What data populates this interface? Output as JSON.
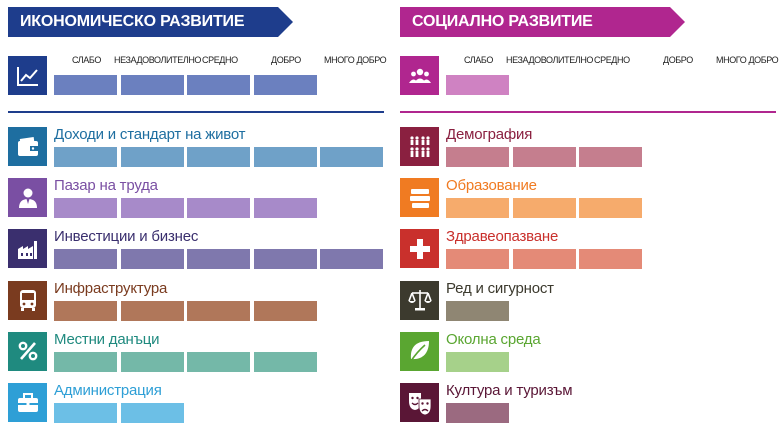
{
  "colors": {
    "economic_banner": "#1e3d8c",
    "social_banner": "#b0268f"
  },
  "economic": {
    "title": "ИКОНОМИЧЕСКО РАЗВИТИЕ",
    "overall": {
      "icon": "line-chart-icon",
      "color": "#1e3d8c",
      "bar_color": "#6b80bf",
      "level": 4
    },
    "scale": [
      "СЛАБО",
      "НЕЗАДОВОЛИТЕЛНО",
      "СРЕДНО",
      "ДОБРО",
      "МНОГО ДОБРО"
    ],
    "rows": [
      {
        "label": "Доходи и стандарт на живот",
        "icon": "wallet-icon",
        "color": "#1e6ea0",
        "bar_color": "#6fa1c8",
        "level": 5
      },
      {
        "label": "Пазар на труда",
        "icon": "worker-icon",
        "color": "#7a4fa3",
        "bar_color": "#a78ac9",
        "level": 4
      },
      {
        "label": "Инвестиции и бизнес",
        "icon": "factory-icon",
        "color": "#3a2f6e",
        "bar_color": "#7f78ad",
        "level": 5
      },
      {
        "label": "Инфраструктура",
        "icon": "bus-icon",
        "color": "#7a3b1f",
        "bar_color": "#b0775a",
        "level": 4
      },
      {
        "label": "Местни данъци",
        "icon": "percent-icon",
        "color": "#1f8a7f",
        "bar_color": "#74b8a8",
        "level": 4
      },
      {
        "label": "Администрация",
        "icon": "briefcase-icon",
        "color": "#2e9fd6",
        "bar_color": "#6cbfe6",
        "level": 2
      }
    ]
  },
  "social": {
    "title": "СОЦИАЛНО РАЗВИТИЕ",
    "overall": {
      "icon": "people-icon",
      "color": "#b0268f",
      "bar_color": "#cf82c2",
      "level": 1
    },
    "scale": [
      "СЛАБО",
      "НЕЗАДОВОЛИТЕЛНО",
      "СРЕДНО",
      "ДОБРО",
      "МНОГО ДОБРО"
    ],
    "rows": [
      {
        "label": "Демография",
        "icon": "population-icon",
        "color": "#8a2040",
        "bar_color": "#c57e8e",
        "level": 3
      },
      {
        "label": "Образование",
        "icon": "books-icon",
        "color": "#f07b22",
        "bar_color": "#f6ab6c",
        "level": 3
      },
      {
        "label": "Здравеопазване",
        "icon": "health-cross-icon",
        "color": "#c9302c",
        "bar_color": "#e48a77",
        "level": 3
      },
      {
        "label": "Ред и сигурност",
        "icon": "scales-icon",
        "color": "#3c3a2e",
        "bar_color": "#8f8673",
        "level": 1
      },
      {
        "label": "Околна среда",
        "icon": "leaf-icon",
        "color": "#5aa631",
        "bar_color": "#a6d18a",
        "level": 1
      },
      {
        "label": "Култура и туризъм",
        "icon": "theatre-masks-icon",
        "color": "#5a1636",
        "bar_color": "#9b6a80",
        "level": 1
      }
    ]
  }
}
